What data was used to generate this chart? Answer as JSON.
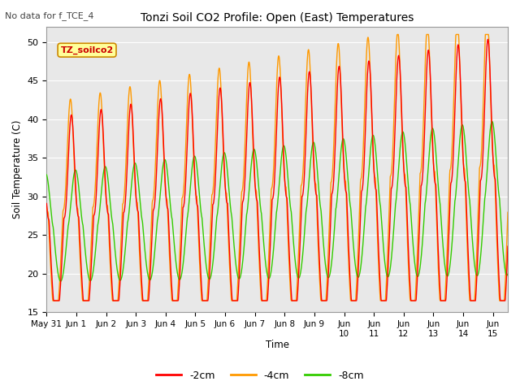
{
  "title": "Tonzi Soil CO2 Profile: Open (East) Temperatures",
  "subtitle": "No data for f_TCE_4",
  "ylabel": "Soil Temperature (C)",
  "xlabel": "Time",
  "ylim": [
    15,
    52
  ],
  "yticks": [
    15,
    20,
    25,
    30,
    35,
    40,
    45,
    50
  ],
  "legend_label": "TZ_soilco2",
  "line_labels": [
    "-2cm",
    "-4cm",
    "-8cm"
  ],
  "line_colors": [
    "#ff0000",
    "#ff9900",
    "#33cc00"
  ],
  "fig_facecolor": "#ffffff",
  "ax_facecolor": "#e8e8e8",
  "grid_color": "#ffffff",
  "n_points": 1500
}
